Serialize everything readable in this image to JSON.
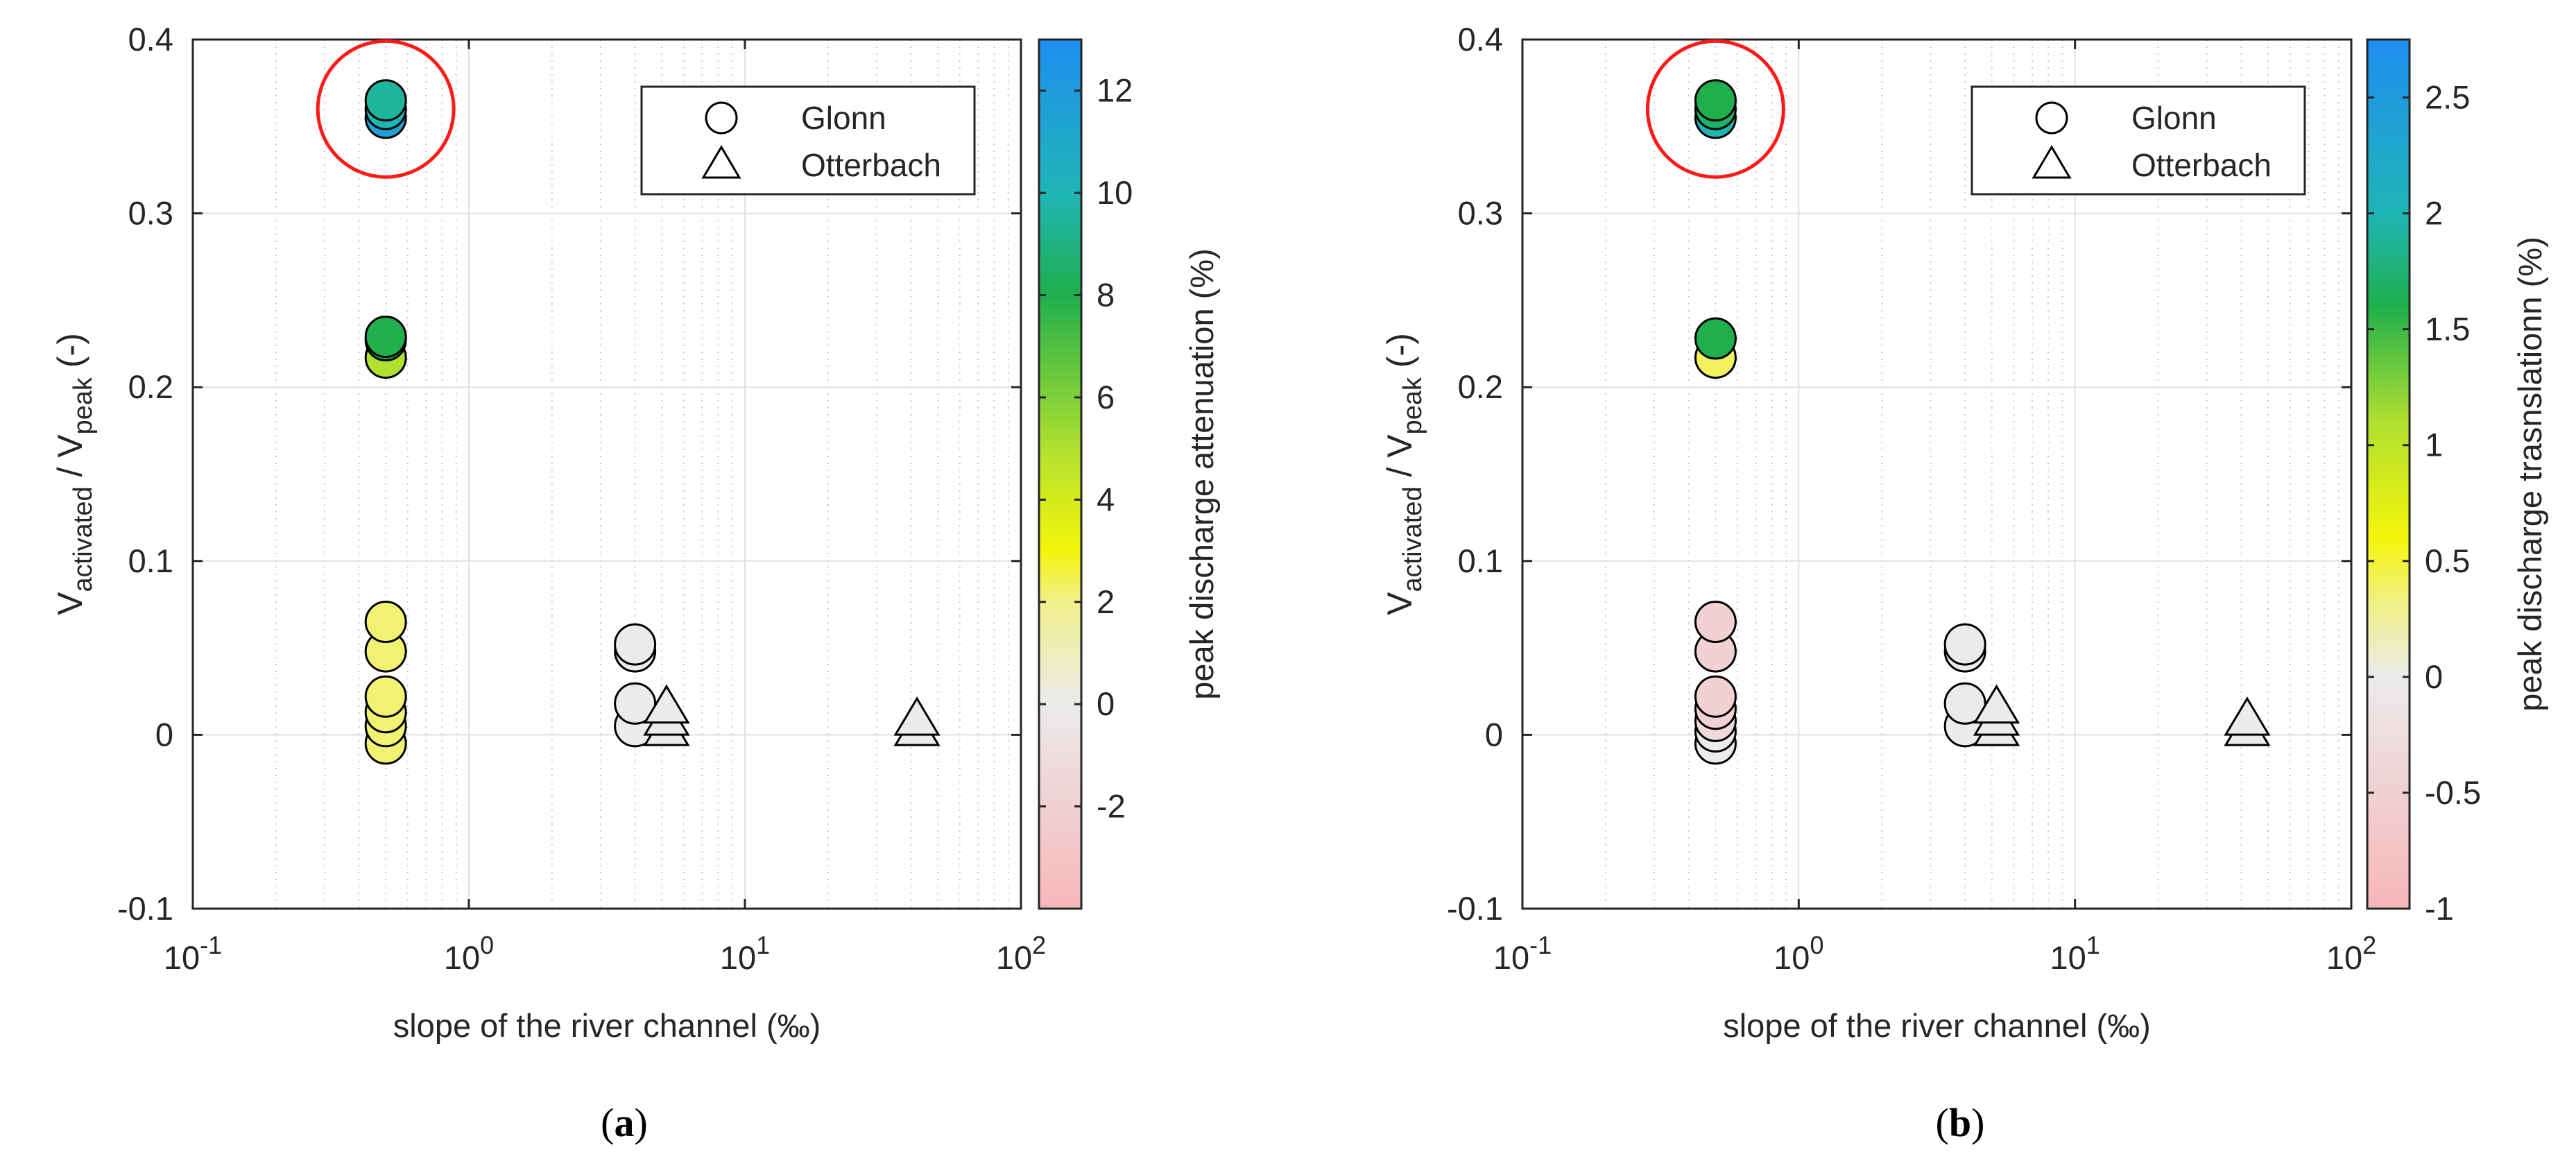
{
  "chart_data": [
    {
      "type": "scatter",
      "panel": "(a)",
      "panel_letter": "a",
      "xscale": "log",
      "xlim": [
        0.1,
        100
      ],
      "ylim": [
        -0.1,
        0.4
      ],
      "xlabel": "slope of the river channel (‰)",
      "ylabel": {
        "base1": "V",
        "sub1": "activated",
        "mid": " / V",
        "sub2": "peak",
        "end": " (-)"
      },
      "xticks": [
        {
          "value": 0.1,
          "base": "10",
          "exp": "-1"
        },
        {
          "value": 1,
          "base": "10",
          "exp": "0"
        },
        {
          "value": 10,
          "base": "10",
          "exp": "1"
        },
        {
          "value": 100,
          "base": "10",
          "exp": "2"
        }
      ],
      "yticks": [
        {
          "value": -0.1,
          "label": "-0.1"
        },
        {
          "value": 0,
          "label": "0"
        },
        {
          "value": 0.1,
          "label": "0.1"
        },
        {
          "value": 0.2,
          "label": "0.2"
        },
        {
          "value": 0.3,
          "label": "0.3"
        },
        {
          "value": 0.4,
          "label": "0.4"
        }
      ],
      "legend": {
        "location": "top-right",
        "entries": [
          {
            "marker": "circle",
            "label": "Glonn"
          },
          {
            "marker": "triangle",
            "label": "Otterbach"
          }
        ]
      },
      "colorbar": {
        "label": "peak discharge attenuation (%)",
        "min": -4.0,
        "max": 13.0,
        "ticks": [
          {
            "value": -2,
            "label": "-2"
          },
          {
            "value": 0,
            "label": "0"
          },
          {
            "value": 2,
            "label": "2"
          },
          {
            "value": 4,
            "label": "4"
          },
          {
            "value": 6,
            "label": "6"
          },
          {
            "value": 8,
            "label": "8"
          },
          {
            "value": 10,
            "label": "10"
          },
          {
            "value": 12,
            "label": "12"
          }
        ],
        "stops": [
          {
            "value": -4.0,
            "color": "#f7b6b9"
          },
          {
            "value": 0,
            "color": "#ebebeb"
          },
          {
            "value": 2,
            "color": "#f0f08c"
          },
          {
            "value": 3,
            "color": "#f5f50a"
          },
          {
            "value": 5,
            "color": "#b0e030"
          },
          {
            "value": 8,
            "color": "#1faf4c"
          },
          {
            "value": 10,
            "color": "#1fb5b6"
          },
          {
            "value": 13.0,
            "color": "#1f8ef0"
          }
        ]
      },
      "highlight": {
        "x": 0.5,
        "y": 0.36,
        "color": "#ff1a1a"
      },
      "series": [
        {
          "name": "Glonn",
          "marker": "circle",
          "points": [
            {
              "x": 0.5,
              "y": -0.005,
              "c": 2.2
            },
            {
              "x": 0.5,
              "y": 0.005,
              "c": 2.2
            },
            {
              "x": 0.5,
              "y": 0.013,
              "c": 2.2
            },
            {
              "x": 0.5,
              "y": 0.022,
              "c": 2.2
            },
            {
              "x": 0.5,
              "y": 0.048,
              "c": 2.2
            },
            {
              "x": 0.5,
              "y": 0.065,
              "c": 2.2
            },
            {
              "x": 0.5,
              "y": 0.217,
              "c": 5.0
            },
            {
              "x": 0.5,
              "y": 0.227,
              "c": 8.0
            },
            {
              "x": 0.5,
              "y": 0.229,
              "c": 8.0
            },
            {
              "x": 0.5,
              "y": 0.355,
              "c": 11.5
            },
            {
              "x": 0.5,
              "y": 0.36,
              "c": 10.0
            },
            {
              "x": 0.5,
              "y": 0.365,
              "c": 9.5
            },
            {
              "x": 4.0,
              "y": 0.005,
              "c": 0.0
            },
            {
              "x": 4.0,
              "y": 0.018,
              "c": 0.0
            },
            {
              "x": 4.0,
              "y": 0.048,
              "c": 0.0
            },
            {
              "x": 4.0,
              "y": 0.052,
              "c": 0.0
            }
          ]
        },
        {
          "name": "Otterbach",
          "marker": "triangle",
          "points": [
            {
              "x": 5.2,
              "y": 0.002,
              "c": 0.0
            },
            {
              "x": 5.2,
              "y": 0.008,
              "c": 0.0
            },
            {
              "x": 5.2,
              "y": 0.015,
              "c": 0.0
            },
            {
              "x": 42,
              "y": 0.002,
              "c": 0.0
            },
            {
              "x": 42,
              "y": 0.008,
              "c": 0.0
            }
          ]
        }
      ]
    },
    {
      "type": "scatter",
      "panel": "(b)",
      "panel_letter": "b",
      "xscale": "log",
      "xlim": [
        0.1,
        100
      ],
      "ylim": [
        -0.1,
        0.4
      ],
      "xlabel": "slope of the river channel (‰)",
      "ylabel": {
        "base1": "V",
        "sub1": "activated",
        "mid": " / V",
        "sub2": "peak",
        "end": " (-)"
      },
      "xticks": [
        {
          "value": 0.1,
          "base": "10",
          "exp": "-1"
        },
        {
          "value": 1,
          "base": "10",
          "exp": "0"
        },
        {
          "value": 10,
          "base": "10",
          "exp": "1"
        },
        {
          "value": 100,
          "base": "10",
          "exp": "2"
        }
      ],
      "yticks": [
        {
          "value": -0.1,
          "label": "-0.1"
        },
        {
          "value": 0,
          "label": "0"
        },
        {
          "value": 0.1,
          "label": "0.1"
        },
        {
          "value": 0.2,
          "label": "0.2"
        },
        {
          "value": 0.3,
          "label": "0.3"
        },
        {
          "value": 0.4,
          "label": "0.4"
        }
      ],
      "legend": {
        "location": "top-right",
        "entries": [
          {
            "marker": "circle",
            "label": "Glonn"
          },
          {
            "marker": "triangle",
            "label": "Otterbach"
          }
        ]
      },
      "colorbar": {
        "label": "peak discharge trasnslationn (%)",
        "min": -1.0,
        "max": 2.75,
        "ticks": [
          {
            "value": -1,
            "label": "-1"
          },
          {
            "value": -0.5,
            "label": "-0.5"
          },
          {
            "value": 0,
            "label": "0"
          },
          {
            "value": 0.5,
            "label": "0.5"
          },
          {
            "value": 1,
            "label": "1"
          },
          {
            "value": 1.5,
            "label": "1.5"
          },
          {
            "value": 2,
            "label": "2"
          },
          {
            "value": 2.5,
            "label": "2.5"
          }
        ],
        "stops": [
          {
            "value": -1.0,
            "color": "#f7b6b9"
          },
          {
            "value": 0,
            "color": "#ebebeb"
          },
          {
            "value": 0.3,
            "color": "#f0f08c"
          },
          {
            "value": 0.6,
            "color": "#f5f50a"
          },
          {
            "value": 1.1,
            "color": "#b0e030"
          },
          {
            "value": 1.6,
            "color": "#1faf4c"
          },
          {
            "value": 2.0,
            "color": "#1fb5b6"
          },
          {
            "value": 2.75,
            "color": "#1f8ef0"
          }
        ]
      },
      "highlight": {
        "x": 0.5,
        "y": 0.36,
        "color": "#ff1a1a"
      },
      "series": [
        {
          "name": "Glonn",
          "marker": "circle",
          "points": [
            {
              "x": 0.5,
              "y": -0.005,
              "c": 0.0
            },
            {
              "x": 0.5,
              "y": 0.002,
              "c": 0.0
            },
            {
              "x": 0.5,
              "y": 0.008,
              "c": -0.3
            },
            {
              "x": 0.5,
              "y": 0.015,
              "c": -0.5
            },
            {
              "x": 0.5,
              "y": 0.022,
              "c": -0.5
            },
            {
              "x": 0.5,
              "y": 0.048,
              "c": -0.5
            },
            {
              "x": 0.5,
              "y": 0.065,
              "c": -0.5
            },
            {
              "x": 0.5,
              "y": 0.217,
              "c": 0.4
            },
            {
              "x": 0.5,
              "y": 0.228,
              "c": 1.6
            },
            {
              "x": 0.5,
              "y": 0.355,
              "c": 2.0
            },
            {
              "x": 0.5,
              "y": 0.36,
              "c": 1.7
            },
            {
              "x": 0.5,
              "y": 0.365,
              "c": 1.6
            },
            {
              "x": 4.0,
              "y": 0.005,
              "c": 0.0
            },
            {
              "x": 4.0,
              "y": 0.018,
              "c": 0.0
            },
            {
              "x": 4.0,
              "y": 0.048,
              "c": 0.0
            },
            {
              "x": 4.0,
              "y": 0.052,
              "c": 0.0
            }
          ]
        },
        {
          "name": "Otterbach",
          "marker": "triangle",
          "points": [
            {
              "x": 5.2,
              "y": 0.002,
              "c": 0.0
            },
            {
              "x": 5.2,
              "y": 0.008,
              "c": 0.0
            },
            {
              "x": 5.2,
              "y": 0.015,
              "c": 0.0
            },
            {
              "x": 42,
              "y": 0.002,
              "c": 0.0
            },
            {
              "x": 42,
              "y": 0.008,
              "c": 0.0
            }
          ]
        }
      ]
    }
  ]
}
